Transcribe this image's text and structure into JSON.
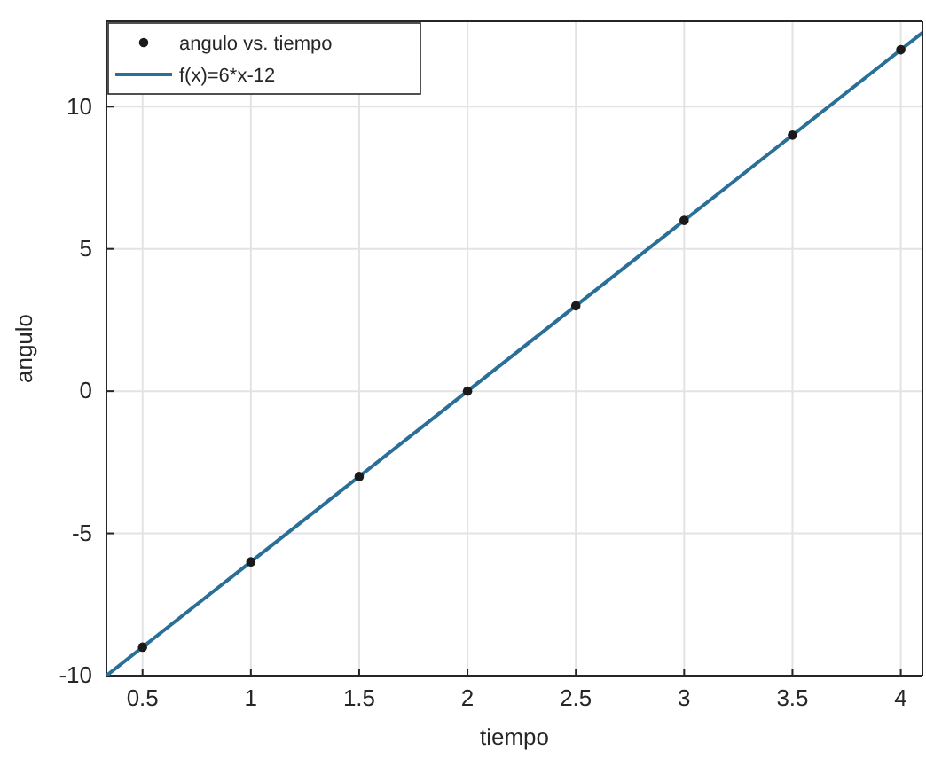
{
  "chart_data": {
    "type": "scatter",
    "xlabel": "tiempo",
    "ylabel": "angulo",
    "xlim": [
      0.3333,
      4.1
    ],
    "ylim": [
      -10,
      13
    ],
    "xticks": [
      0.5,
      1,
      1.5,
      2,
      2.5,
      3,
      3.5,
      4
    ],
    "yticks": [
      -10,
      -5,
      0,
      5,
      10
    ],
    "grid": true,
    "legend": "top left",
    "series": [
      {
        "name": "angulo vs. tiempo",
        "marker": "circle",
        "color": "#1a1a1a",
        "x": [
          0.5,
          1,
          1.5,
          2,
          2.5,
          3,
          3.5,
          4
        ],
        "values": [
          -9,
          -6,
          -3,
          0,
          3,
          6,
          9,
          12
        ]
      },
      {
        "name": "f(x)=6*x-12",
        "type": "line",
        "marker": "none",
        "line_style": "solid",
        "color": "#2a6f97",
        "x": [
          0.3333,
          4.1
        ],
        "values": [
          -10,
          12.6
        ]
      }
    ]
  }
}
